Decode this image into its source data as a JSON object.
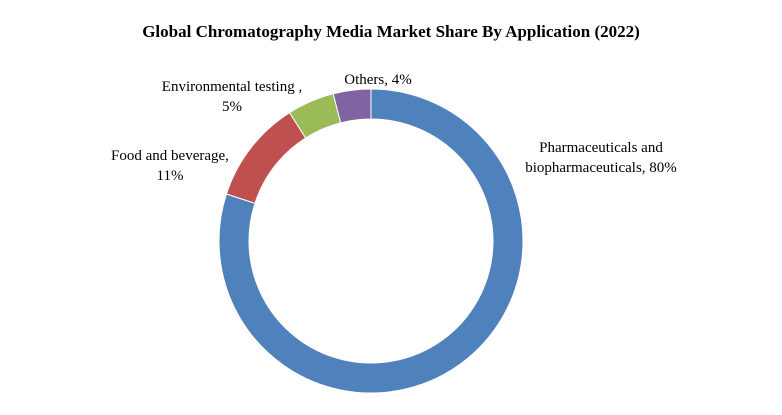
{
  "chart_data": {
    "type": "pie",
    "variant": "donut",
    "title": "Global Chromatography Media Market Share By Application (2022)",
    "categories": [
      "Pharmaceuticals and biopharmaceuticals",
      "Food and beverage",
      "Environmental testing",
      "Others"
    ],
    "values": [
      80,
      11,
      5,
      4
    ],
    "unit": "%",
    "colors": [
      "#4F81BD",
      "#C0504D",
      "#9BBB59",
      "#8064A2"
    ],
    "labels": [
      {
        "lines": [
          "Pharmaceuticals and",
          "biopharmaceuticals, 80%"
        ]
      },
      {
        "lines": [
          "Food and beverage,",
          "11%"
        ]
      },
      {
        "lines": [
          "Environmental  testing ,",
          "5%"
        ]
      },
      {
        "lines": [
          "Others, 4%"
        ]
      }
    ],
    "legend": "none"
  }
}
